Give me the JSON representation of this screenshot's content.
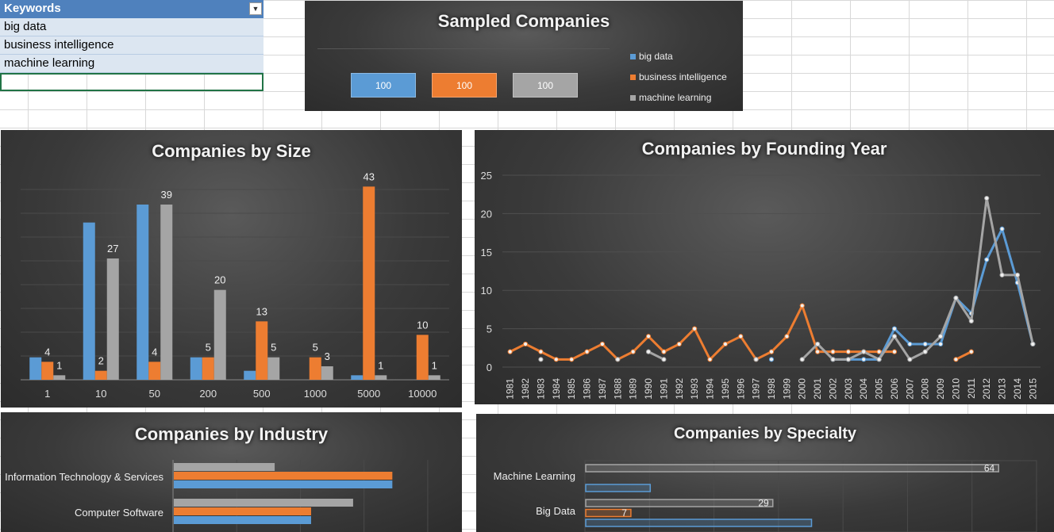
{
  "table": {
    "header": "Keywords",
    "rows": [
      "big data",
      "business intelligence",
      "machine learning"
    ]
  },
  "colors": {
    "big_data": "#5b9bd5",
    "business_intelligence": "#ed7d31",
    "machine_learning": "#a5a5a5"
  },
  "sampled": {
    "title": "Sampled Companies",
    "boxes": [
      {
        "label": "100",
        "color": "#5b9bd5"
      },
      {
        "label": "100",
        "color": "#ed7d31"
      },
      {
        "label": "100",
        "color": "#a5a5a5"
      }
    ],
    "legend": [
      "big data",
      "business intelligence",
      "machine learning"
    ]
  },
  "chart_data": [
    {
      "type": "bar",
      "title": "Companies by Size",
      "categories": [
        "1",
        "10",
        "50",
        "200",
        "500",
        "1000",
        "5000",
        "10000"
      ],
      "ylim": [
        0,
        45
      ],
      "series": [
        {
          "name": "big data",
          "values": [
            5,
            35,
            39,
            5,
            2,
            0,
            1,
            0
          ],
          "labels": [
            "",
            "",
            "",
            "",
            "",
            "",
            "",
            ""
          ]
        },
        {
          "name": "business intelligence",
          "values": [
            4,
            2,
            4,
            5,
            13,
            5,
            43,
            10
          ],
          "labels": [
            "4",
            "2",
            "4",
            "5",
            "13",
            "5",
            "43",
            "10"
          ]
        },
        {
          "name": "machine learning",
          "values": [
            1,
            27,
            39,
            20,
            5,
            3,
            1,
            1
          ],
          "labels": [
            "1",
            "27",
            "39",
            "20",
            "5",
            "3",
            "1",
            "1"
          ]
        }
      ]
    },
    {
      "type": "line",
      "title": "Companies by Founding Year",
      "x": [
        "1981",
        "1982",
        "1983",
        "1984",
        "1985",
        "1986",
        "1987",
        "1988",
        "1989",
        "1990",
        "1991",
        "1992",
        "1993",
        "1994",
        "1995",
        "1996",
        "1997",
        "1998",
        "1999",
        "2000",
        "2001",
        "2002",
        "2003",
        "2004",
        "2005",
        "2006",
        "2007",
        "2008",
        "2009",
        "2010",
        "2011",
        "2012",
        "2013",
        "2014",
        "2015"
      ],
      "ylim": [
        0,
        25
      ],
      "yticks": [
        "0",
        "5",
        "10",
        "15",
        "20",
        "25"
      ],
      "series": [
        {
          "name": "big data",
          "values": [
            null,
            null,
            null,
            null,
            null,
            null,
            null,
            null,
            null,
            null,
            null,
            null,
            null,
            null,
            null,
            null,
            null,
            1,
            null,
            null,
            null,
            1,
            1,
            1,
            1,
            5,
            3,
            3,
            3,
            9,
            7,
            14,
            18,
            11,
            3
          ]
        },
        {
          "name": "business intelligence",
          "values": [
            2,
            3,
            2,
            1,
            1,
            2,
            3,
            1,
            2,
            4,
            2,
            3,
            5,
            1,
            3,
            4,
            1,
            2,
            4,
            8,
            2,
            2,
            2,
            2,
            2,
            2,
            null,
            null,
            null,
            1,
            2,
            null,
            null,
            null,
            null
          ]
        },
        {
          "name": "machine learning",
          "values": [
            null,
            null,
            1,
            null,
            null,
            null,
            null,
            1,
            null,
            2,
            1,
            null,
            null,
            null,
            null,
            null,
            1,
            null,
            null,
            1,
            3,
            1,
            1,
            2,
            1,
            4,
            1,
            2,
            4,
            9,
            6,
            22,
            12,
            12,
            3
          ]
        }
      ]
    },
    {
      "type": "bar",
      "title": "Companies by Industry",
      "categories": [
        "Information Technology & Services",
        "Computer Software"
      ],
      "xlim": [
        0,
        100
      ],
      "series": [
        {
          "name": "machine learning",
          "values": [
            36,
            64
          ]
        },
        {
          "name": "business intelligence",
          "values": [
            78,
            49
          ]
        },
        {
          "name": "big data",
          "values": [
            78,
            49
          ]
        }
      ]
    },
    {
      "type": "bar",
      "title": "Companies by Specialty",
      "categories": [
        "Machine Learning",
        "Big Data"
      ],
      "xlim": [
        0,
        70
      ],
      "series": [
        {
          "name": "machine learning",
          "values": [
            64,
            29
          ],
          "labels": [
            "64",
            "29"
          ]
        },
        {
          "name": "business intelligence",
          "values": [
            0,
            7
          ],
          "labels": [
            "",
            "7"
          ]
        },
        {
          "name": "big data",
          "values": [
            10,
            35
          ],
          "labels": [
            "",
            ""
          ]
        }
      ]
    }
  ]
}
